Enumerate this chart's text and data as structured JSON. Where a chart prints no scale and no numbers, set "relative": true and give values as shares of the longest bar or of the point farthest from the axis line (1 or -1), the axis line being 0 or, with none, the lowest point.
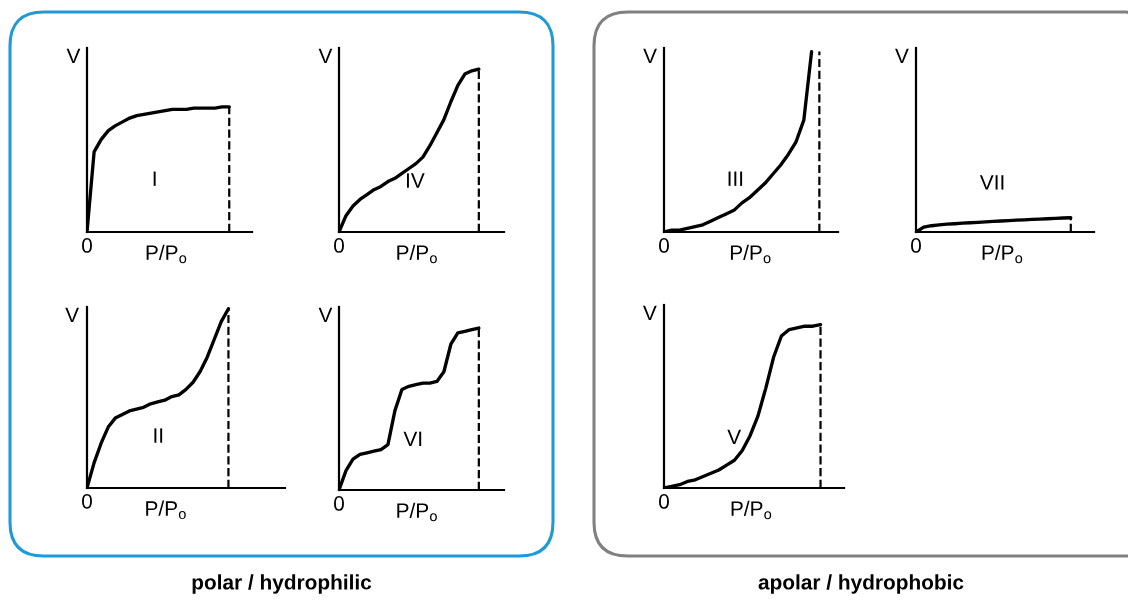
{
  "chart_data": [
    {
      "type": "line",
      "relative": true,
      "xlabel": "P/P$_{o}$",
      "ylabel": "V",
      "color": "#000000",
      "categories": [
        null,
        null,
        null,
        null,
        null,
        null,
        null,
        null,
        null,
        null,
        null,
        null,
        null,
        null,
        null,
        null,
        null,
        null,
        null,
        null,
        null
      ],
      "values": [
        0,
        0.64,
        0.74,
        0.81,
        0.85,
        0.88,
        0.91,
        0.93,
        0.94,
        0.95,
        0.96,
        0.97,
        0.98,
        0.98,
        0.98,
        0.99,
        0.99,
        0.99,
        0.99,
        1,
        1
      ],
      "ref_lines": [
        {
          "axis": "x",
          "line_style": "dashed"
        }
      ],
      "annotations": [
        "0",
        "I",
        "polar / hydrophilic"
      ]
    },
    {
      "type": "line",
      "relative": true,
      "xlabel": "P/P$_{o}$",
      "ylabel": "V",
      "color": "#000000",
      "categories": [
        null,
        null,
        null,
        null,
        null,
        null,
        null,
        null,
        null,
        null,
        null,
        null,
        null,
        null,
        null,
        null,
        null,
        null,
        null,
        null,
        null
      ],
      "values": [
        0,
        0.1,
        0.16,
        0.2,
        0.23,
        0.26,
        0.28,
        0.31,
        0.33,
        0.36,
        0.39,
        0.42,
        0.46,
        0.53,
        0.61,
        0.69,
        0.8,
        0.9,
        0.97,
        0.99,
        1
      ],
      "ref_lines": [
        {
          "axis": "x",
          "line_style": "dashed"
        }
      ],
      "annotations": [
        "0",
        "IV"
      ]
    },
    {
      "type": "line",
      "relative": true,
      "xlabel": "P/P$_{o}$",
      "ylabel": "V",
      "color": "#000000",
      "categories": [
        null,
        null,
        null,
        null,
        null,
        null,
        null,
        null,
        null,
        null,
        null,
        null,
        null,
        null,
        null,
        null,
        null,
        null,
        null,
        null,
        null
      ],
      "values": [
        0,
        0.14,
        0.25,
        0.34,
        0.39,
        0.41,
        0.43,
        0.44,
        0.45,
        0.47,
        0.48,
        0.49,
        0.51,
        0.52,
        0.55,
        0.59,
        0.65,
        0.73,
        0.83,
        0.93,
        1
      ],
      "ref_lines": [
        {
          "axis": "x",
          "line_style": "dashed"
        }
      ],
      "annotations": [
        "0",
        "II"
      ]
    },
    {
      "type": "line",
      "relative": true,
      "xlabel": "P/P$_{o}$",
      "ylabel": "V",
      "color": "#000000",
      "categories": [
        null,
        null,
        null,
        null,
        null,
        null,
        null,
        null,
        null,
        null,
        null,
        null,
        null,
        null,
        null,
        null,
        null,
        null,
        null,
        null,
        null
      ],
      "values": [
        0,
        0.12,
        0.19,
        0.22,
        0.23,
        0.24,
        0.25,
        0.28,
        0.49,
        0.62,
        0.64,
        0.65,
        0.66,
        0.66,
        0.67,
        0.73,
        0.9,
        0.97,
        0.98,
        0.99,
        1
      ],
      "ref_lines": [
        {
          "axis": "x",
          "line_style": "dashed"
        }
      ],
      "annotations": [
        "0",
        "VI"
      ]
    },
    {
      "type": "line",
      "relative": true,
      "xlabel": "P/P$_{o}$",
      "ylabel": "V",
      "color": "#000000",
      "categories": [
        null,
        null,
        null,
        null,
        null,
        null,
        null,
        null,
        null,
        null,
        null,
        null,
        null,
        null,
        null,
        null,
        null,
        null,
        null,
        null,
        null
      ],
      "values": [
        0,
        0.01,
        0.01,
        0.02,
        0.03,
        0.04,
        0.06,
        0.08,
        0.1,
        0.12,
        0.16,
        0.19,
        0.23,
        0.27,
        0.32,
        0.37,
        0.43,
        0.5,
        0.62,
        1,
        null
      ],
      "ref_lines": [
        {
          "axis": "x",
          "line_style": "dashed"
        }
      ],
      "annotations": [
        "0",
        "III",
        "apolar / hydrophobic"
      ]
    },
    {
      "type": "line",
      "relative": true,
      "xlabel": "P/P$_{o}$",
      "ylabel": "V",
      "color": "#000000",
      "categories": [
        null,
        null,
        null,
        null,
        null,
        null,
        null,
        null,
        null,
        null,
        null,
        null,
        null,
        null,
        null,
        null,
        null,
        null,
        null,
        null,
        null
      ],
      "values": [
        0,
        0.34,
        0.44,
        0.5,
        0.55,
        0.58,
        0.62,
        0.65,
        0.68,
        0.71,
        0.74,
        0.77,
        0.8,
        0.83,
        0.85,
        0.88,
        0.9,
        0.93,
        0.95,
        0.98,
        1
      ],
      "ref_lines": [
        {
          "axis": "x",
          "line_style": "dashed"
        }
      ],
      "annotations": [
        "0",
        "VII"
      ]
    },
    {
      "type": "line",
      "relative": true,
      "xlabel": "P/P$_{o}$",
      "ylabel": "V",
      "color": "#000000",
      "categories": [
        null,
        null,
        null,
        null,
        null,
        null,
        null,
        null,
        null,
        null,
        null,
        null,
        null,
        null,
        null,
        null,
        null,
        null,
        null,
        null,
        null
      ],
      "values": [
        0,
        0.01,
        0.02,
        0.04,
        0.05,
        0.07,
        0.09,
        0.11,
        0.14,
        0.17,
        0.23,
        0.32,
        0.44,
        0.61,
        0.8,
        0.93,
        0.97,
        0.98,
        0.99,
        0.99,
        1
      ],
      "ref_lines": [
        {
          "axis": "x",
          "line_style": "dashed"
        }
      ],
      "annotations": [
        "0",
        "V"
      ]
    }
  ]
}
